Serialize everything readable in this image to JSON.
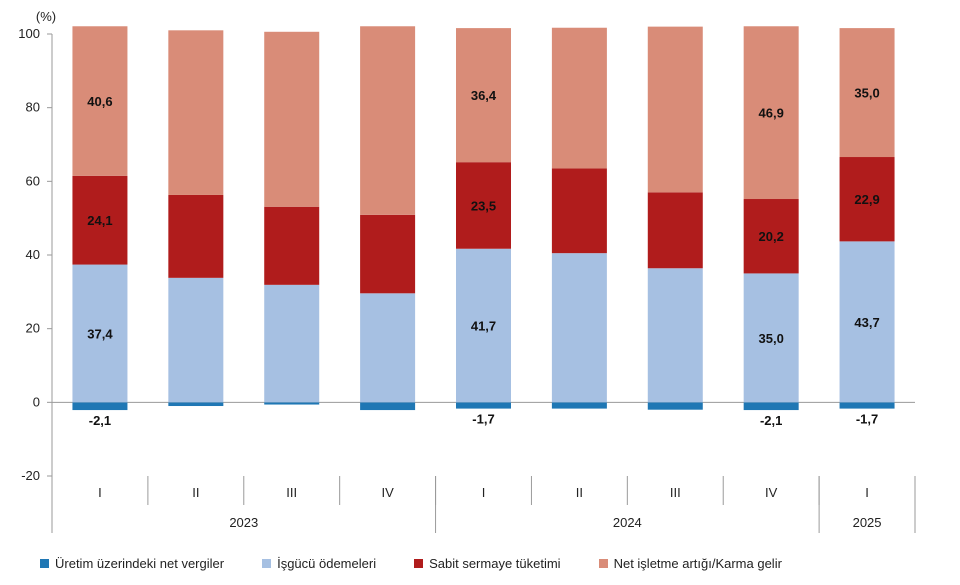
{
  "chart_data": {
    "type": "bar",
    "stacked": true,
    "unit_label": "(%)",
    "ylim": [
      -20,
      100
    ],
    "y_ticks": [
      "-20",
      "0",
      "20",
      "40",
      "60",
      "80",
      "100"
    ],
    "grid": false,
    "categories": [
      "I",
      "II",
      "III",
      "IV",
      "I",
      "II",
      "III",
      "IV",
      "I"
    ],
    "year_groups": [
      {
        "label": "2023",
        "count": 4
      },
      {
        "label": "2024",
        "count": 4
      },
      {
        "label": "2025",
        "count": 1
      }
    ],
    "series": [
      {
        "name": "Üretim üzerindeki net vergiler",
        "color": "#1f77b4",
        "values": [
          -2.1,
          -1.0,
          -0.6,
          -2.1,
          -1.7,
          -1.7,
          -2.0,
          -2.1,
          -1.7
        ]
      },
      {
        "name": "İşgücü ödemeleri",
        "color": "#a6c0e2",
        "values": [
          37.4,
          33.8,
          31.9,
          29.6,
          41.7,
          40.5,
          36.4,
          35.0,
          43.7
        ]
      },
      {
        "name": "Sabit sermaye tüketimi",
        "color": "#b01c1c",
        "values": [
          24.1,
          22.5,
          21.2,
          21.3,
          23.5,
          23.0,
          20.6,
          20.2,
          22.9
        ]
      },
      {
        "name": "Net işletme artığı/Karma gelir",
        "color": "#d98c78",
        "values": [
          40.6,
          44.7,
          47.5,
          51.2,
          36.4,
          38.2,
          45.0,
          46.9,
          35.0
        ]
      }
    ],
    "data_labels": [
      {
        "series": 0,
        "index": 0,
        "text": "-2,1"
      },
      {
        "series": 0,
        "index": 4,
        "text": "-1,7"
      },
      {
        "series": 0,
        "index": 7,
        "text": "-2,1"
      },
      {
        "series": 0,
        "index": 8,
        "text": "-1,7"
      },
      {
        "series": 1,
        "index": 0,
        "text": "37,4"
      },
      {
        "series": 1,
        "index": 4,
        "text": "41,7"
      },
      {
        "series": 1,
        "index": 7,
        "text": "35,0"
      },
      {
        "series": 1,
        "index": 8,
        "text": "43,7"
      },
      {
        "series": 2,
        "index": 0,
        "text": "24,1"
      },
      {
        "series": 2,
        "index": 4,
        "text": "23,5"
      },
      {
        "series": 2,
        "index": 7,
        "text": "20,2"
      },
      {
        "series": 2,
        "index": 8,
        "text": "22,9"
      },
      {
        "series": 3,
        "index": 0,
        "text": "40,6"
      },
      {
        "series": 3,
        "index": 4,
        "text": "36,4"
      },
      {
        "series": 3,
        "index": 7,
        "text": "46,9"
      },
      {
        "series": 3,
        "index": 8,
        "text": "35,0"
      }
    ],
    "legend_position": "bottom"
  }
}
